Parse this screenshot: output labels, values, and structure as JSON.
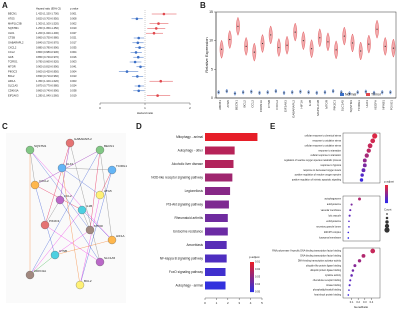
{
  "panels": {
    "A": {
      "letter": "A",
      "header": [
        "Hazard ratio (95% CI)",
        "p value"
      ],
      "axis_label": "Hazard ratio",
      "xlim": [
        0,
        2
      ],
      "xticks": [
        0,
        1,
        2
      ],
      "rows": [
        {
          "name": "BECN1",
          "hr": 1.42,
          "lo": 1.15,
          "hi": 1.7,
          "ci": "1.420 (1.150-1.700)",
          "p": "0.001"
        },
        {
          "name": "ATG5",
          "hr": 0.82,
          "lo": 0.7,
          "hi": 0.95,
          "ci": "0.820 (0.700-0.950)",
          "p": "0.008"
        },
        {
          "name": "MAP1LC3B",
          "hr": 1.3,
          "lo": 1.1,
          "hi": 1.52,
          "ci": "1.300 (1.100-1.520)",
          "p": "0.002"
        },
        {
          "name": "SQSTM1",
          "hr": 1.25,
          "lo": 1.05,
          "hi": 1.45,
          "ci": "1.250 (1.050-1.450)",
          "p": "0.010"
        },
        {
          "name": "ULK1",
          "hr": 1.2,
          "lo": 1.02,
          "hi": 1.4,
          "ci": "1.200 (1.020-1.400)",
          "p": "0.027"
        },
        {
          "name": "CTSB",
          "hr": 0.86,
          "lo": 0.75,
          "hi": 0.98,
          "ci": "0.860 (0.750-0.980)",
          "p": "0.021"
        },
        {
          "name": "GABARAPL2",
          "hr": 0.84,
          "lo": 0.72,
          "hi": 0.97,
          "ci": "0.840 (0.720-0.970)",
          "p": "0.017"
        },
        {
          "name": "CXCL2",
          "hr": 0.88,
          "lo": 0.78,
          "hi": 0.99,
          "ci": "0.880 (0.780-0.990)",
          "p": "0.035"
        },
        {
          "name": "CCL2",
          "hr": 0.8,
          "lo": 0.68,
          "hi": 0.93,
          "ci": "0.800 (0.680-0.930)",
          "p": "0.004"
        },
        {
          "name": "IL1B",
          "hr": 0.85,
          "lo": 0.74,
          "hi": 0.97,
          "ci": "0.850 (0.740-0.970)",
          "p": "0.016"
        },
        {
          "name": "TCIRG1",
          "hr": 0.78,
          "lo": 0.66,
          "hi": 0.92,
          "ci": "0.780 (0.660-0.920)",
          "p": "0.003"
        },
        {
          "name": "MTOR",
          "hr": 0.9,
          "lo": 0.81,
          "hi": 0.99,
          "ci": "0.900 (0.810-0.990)",
          "p": "0.041"
        },
        {
          "name": "PIK3C3",
          "hr": 0.6,
          "lo": 0.42,
          "hi": 0.85,
          "ci": "0.600 (0.420-0.850)",
          "p": "0.004"
        },
        {
          "name": "BCL2",
          "hr": 0.83,
          "lo": 0.71,
          "hi": 0.96,
          "ci": "0.830 (0.710-0.960)",
          "p": "0.013"
        },
        {
          "name": "HIF1A",
          "hr": 1.35,
          "lo": 1.1,
          "hi": 1.62,
          "ci": "1.350 (1.100-1.620)",
          "p": "0.003"
        },
        {
          "name": "SLC1A5",
          "hr": 0.87,
          "lo": 0.77,
          "hi": 0.98,
          "ci": "0.870 (0.770-0.980)",
          "p": "0.024"
        },
        {
          "name": "CDKN1A",
          "hr": 0.86,
          "lo": 0.74,
          "hi": 0.99,
          "ci": "0.860 (0.740-0.990)",
          "p": "0.038"
        },
        {
          "name": "EIF2AK3",
          "hr": 1.28,
          "lo": 1.04,
          "hi": 1.56,
          "ci": "1.280 (1.040-1.560)",
          "p": "0.019"
        }
      ]
    },
    "B": {
      "letter": "B",
      "ylabel": "Relative Expression",
      "ylim": [
        0,
        15
      ],
      "yticks": [
        0,
        5,
        10,
        15
      ],
      "genes": [
        "ABCB1",
        "ATG5",
        "BECN1",
        "BCL2",
        "CCL2",
        "CDKN1A",
        "CTSB",
        "CXCL2",
        "EIF2AK3",
        "GABARAPL2",
        "HIF1A",
        "IL1B",
        "MAP1LC3B",
        "MTOR",
        "PIK3C3",
        "SLC1A5",
        "SQSTM1",
        "TCIRG1",
        "ULK1",
        "VEGFA",
        "NFKB1",
        "FOXO1"
      ],
      "series": [
        {
          "name": "Normal",
          "color": "#3b6fc6",
          "values": [
            1,
            1.2,
            0.8,
            1,
            1.1,
            0.9,
            1,
            1.2,
            0.9,
            1,
            1.1,
            1,
            0.9,
            1,
            1.2,
            1,
            0.8,
            1,
            1.1,
            0.9,
            1,
            1
          ]
        },
        {
          "name": "Tumor",
          "color": "#e0474c",
          "values": [
            8.5,
            10.2,
            12.5,
            9,
            8,
            9.5,
            11,
            8.8,
            9.2,
            11.5,
            10,
            8.6,
            10.5,
            9.8,
            8.4,
            10.8,
            9.6,
            8.2,
            9.4,
            12,
            9,
            8.7
          ]
        }
      ]
    },
    "C": {
      "letter": "C",
      "nodes": [
        "GABARAPL2",
        "BECN1",
        "TCIRG1",
        "CXCL2",
        "CCL2",
        "IL1B",
        "ATG5",
        "MTOR",
        "PIK3C3",
        "SQSTM1",
        "ULK1",
        "HIF1A",
        "SLC1A5",
        "CTSB",
        "BCL2",
        "CDKN1A"
      ]
    },
    "D": {
      "letter": "D",
      "legend_title": "p.adjust",
      "clim": [
        0.01,
        0.05
      ],
      "cticks": [
        0.01,
        0.02,
        0.03,
        0.04,
        0.05
      ],
      "xlim": [
        0,
        5
      ],
      "xticks": [
        0,
        1,
        2,
        3,
        4,
        5
      ],
      "categories": [
        "Mitophagy - animal",
        "Autophagy - other",
        "Alcoholic liver disease",
        "NOD-like receptor signaling pathway",
        "Legionellosis",
        "PI3-Akt signaling pathway",
        "Rheumatoid arthritis",
        "Endocrine resistance",
        "Amoebiasis",
        "NF-kappa B signaling pathway",
        "FoxO signaling pathway",
        "Autophagy - animal"
      ],
      "values": [
        4.6,
        2.6,
        2.5,
        2.4,
        2.2,
        2.1,
        2,
        2,
        1.9,
        1.9,
        1.8,
        1.8
      ],
      "padj": [
        0.01,
        0.02,
        0.021,
        0.025,
        0.03,
        0.032,
        0.035,
        0.036,
        0.04,
        0.042,
        0.045,
        0.048
      ]
    },
    "E": {
      "letter": "E",
      "xlabel": "GeneRatio",
      "legend_title": "p.adjust",
      "size_title": "Count",
      "xlim": [
        0,
        0.5
      ],
      "xticks": [
        0.1,
        0.2,
        0.3,
        0.4
      ],
      "groups": [
        {
          "terms": [
            "cellular response to chemical stress",
            "response to oxidative stress",
            "cellular response to oxidative stress",
            "response to starvation",
            "cellular response to starvation",
            "regulation of reactive oxygen species metabolic process",
            "response to hypoxia",
            "response to decreased oxygen levels",
            "positive regulation of reactive oxygen species",
            "positive regulation of intrinsic apoptotic signaling"
          ],
          "ratio": [
            0.45,
            0.42,
            0.38,
            0.36,
            0.33,
            0.3,
            0.3,
            0.28,
            0.26,
            0.25
          ],
          "count": [
            9,
            8,
            8,
            7,
            7,
            6,
            6,
            6,
            5,
            5
          ],
          "padj": [
            0.001,
            0.002,
            0.003,
            0.004,
            0.006,
            0.008,
            0.01,
            0.012,
            0.014,
            0.016
          ]
        },
        {
          "terms": [
            "autophagosome",
            "autolysosome",
            "vacuolar membrane",
            "lytic vacuole",
            "endolysosome",
            "secretory granule lumen",
            "ESCRT complex",
            "lysosomal membrane"
          ],
          "ratio": [
            0.22,
            0.1,
            0.08,
            0.07,
            0.06,
            0.06,
            0.05,
            0.05
          ],
          "count": [
            4,
            2,
            2,
            2,
            1,
            1,
            1,
            1
          ],
          "padj": [
            0.005,
            0.01,
            0.012,
            0.013,
            0.014,
            0.015,
            0.016,
            0.017
          ]
        },
        {
          "terms": [
            "RNA polymerase II-specific DNA-binding transcription factor binding",
            "DNA-binding transcription factor binding",
            "DNA-binding transcription activator activity",
            "ubiquitin-like protein ligase binding",
            "ubiquitin protein ligase binding",
            "cytokine activity",
            "chemokine receptor binding",
            "kinase binding",
            "phosphatidylinositol binding",
            "heat shock protein binding"
          ],
          "ratio": [
            0.42,
            0.28,
            0.22,
            0.15,
            0.12,
            0.1,
            0.08,
            0.07,
            0.06,
            0.05
          ],
          "count": [
            8,
            6,
            5,
            4,
            3,
            3,
            2,
            2,
            1,
            1
          ],
          "padj": [
            0.003,
            0.005,
            0.007,
            0.009,
            0.011,
            0.012,
            0.013,
            0.014,
            0.015,
            0.016
          ]
        }
      ]
    }
  }
}
